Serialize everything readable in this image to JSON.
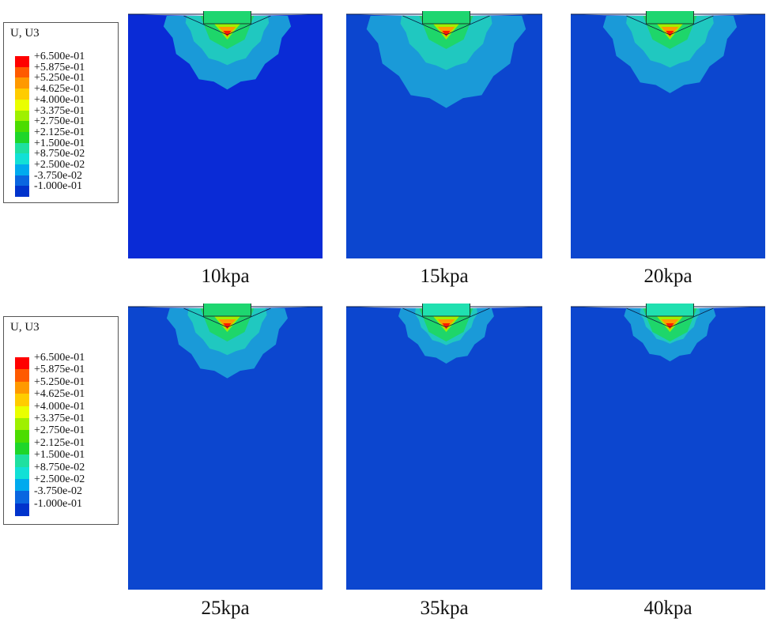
{
  "legend": {
    "title": "U, U3",
    "levels": [
      {
        "label": "+6.500e-01",
        "color": "#ff0000"
      },
      {
        "label": "+5.875e-01",
        "color": "#ff5a00"
      },
      {
        "label": "+5.250e-01",
        "color": "#ff9900"
      },
      {
        "label": "+4.625e-01",
        "color": "#ffcc00"
      },
      {
        "label": "+4.000e-01",
        "color": "#eaff00"
      },
      {
        "label": "+3.375e-01",
        "color": "#9ff000"
      },
      {
        "label": "+2.750e-01",
        "color": "#4cdc00"
      },
      {
        "label": "+2.125e-01",
        "color": "#1ed62a"
      },
      {
        "label": "+1.500e-01",
        "color": "#1ee0a0"
      },
      {
        "label": "+8.750e-02",
        "color": "#12e0d6"
      },
      {
        "label": "+2.500e-02",
        "color": "#00aaee"
      },
      {
        "label": "-3.750e-02",
        "color": "#0a66e0"
      },
      {
        "label": "-1.000e-01",
        "color": "#0033cc"
      }
    ]
  },
  "panels": [
    {
      "label": "10kpa",
      "plate_color": "#1ed670",
      "spread": 1.0
    },
    {
      "label": "15kpa",
      "plate_color": "#1ed670",
      "spread": 1.25
    },
    {
      "label": "20kpa",
      "plate_color": "#1ed670",
      "spread": 1.05
    },
    {
      "label": "25kpa",
      "plate_color": "#1ed670",
      "spread": 0.95
    },
    {
      "label": "35kpa",
      "plate_color": "#20e0b0",
      "spread": 0.75
    },
    {
      "label": "40kpa",
      "plate_color": "#20e0b0",
      "spread": 0.72
    }
  ],
  "colors": {
    "background_10kpa": "#0a2bd6",
    "background_other": "#0c46cf",
    "outer_zone": "#1a9ad8",
    "mid_zone": "#20c8c0",
    "inner_zone": "#1ed66a",
    "core": "#a0f000",
    "hot": "#ff9900",
    "peak": "#ff1a00"
  }
}
